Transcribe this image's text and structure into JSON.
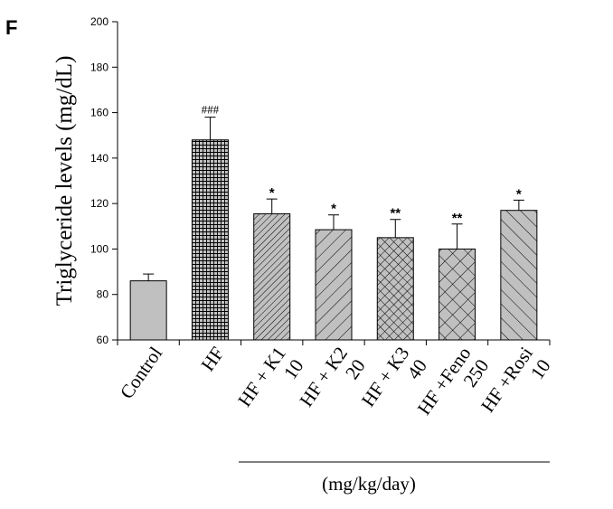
{
  "panel_label": "F",
  "chart_data": {
    "type": "bar",
    "categories": [
      [
        "Control"
      ],
      [
        "HF"
      ],
      [
        "HF + K1",
        "10"
      ],
      [
        "HF + K2",
        "20"
      ],
      [
        "HF + K3",
        "40"
      ],
      [
        "HF +Feno",
        "250"
      ],
      [
        "HF +Rosi",
        "10"
      ]
    ],
    "values": [
      86,
      148,
      115.5,
      108.5,
      105,
      100,
      117
    ],
    "error_upper": [
      89,
      158,
      122,
      115,
      113,
      111,
      121.5
    ],
    "significance": [
      "",
      "###",
      "*",
      "*",
      "**",
      "**",
      "*"
    ],
    "patterns": [
      "solid",
      "grid",
      "dense-diagonal",
      "diagonal",
      "crosshatch",
      "wide-crosshatch",
      "back-diagonal"
    ],
    "ylabel": "Triglyceride levels (mg/dL)",
    "xlabel": "",
    "unit_label": "(mg/kg/day)",
    "ylim": [
      60,
      200
    ],
    "yticks": [
      60,
      80,
      100,
      120,
      140,
      160,
      180,
      200
    ],
    "grid": false,
    "colors": {
      "bar_fill": "#c0c0c0",
      "line": "#000000"
    }
  }
}
